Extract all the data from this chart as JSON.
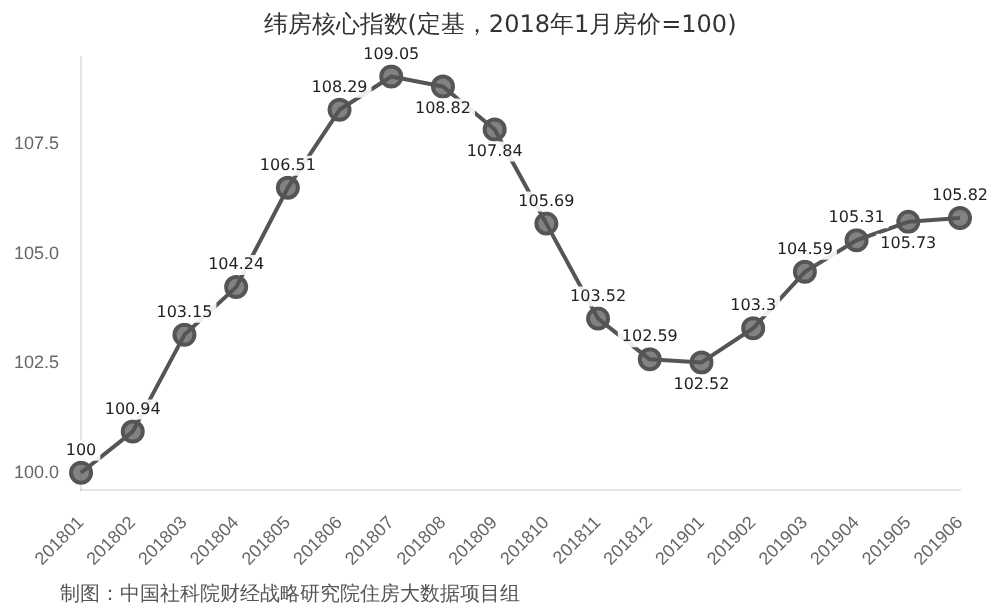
{
  "chart_data": {
    "type": "line",
    "title": "纬房核心指数(定基，2018年1月房价=100)",
    "categories": [
      "201801",
      "201802",
      "201803",
      "201804",
      "201805",
      "201806",
      "201807",
      "201808",
      "201809",
      "201810",
      "201811",
      "201812",
      "201901",
      "201902",
      "201903",
      "201904",
      "201905",
      "201906"
    ],
    "values": [
      100,
      100.94,
      103.15,
      104.24,
      106.51,
      108.29,
      109.05,
      108.82,
      107.84,
      105.69,
      103.52,
      102.59,
      102.52,
      103.3,
      104.59,
      105.31,
      105.73,
      105.82
    ],
    "color": "#555555",
    "marker": "circle",
    "data_labels": true,
    "ylim": [
      99.6,
      109.5
    ],
    "yticks": [
      {
        "value": 100,
        "label": "100.0"
      },
      {
        "value": 102.5,
        "label": "102.5"
      },
      {
        "value": 105,
        "label": "105.0"
      },
      {
        "value": 107.5,
        "label": "107.5"
      }
    ],
    "grid": false,
    "annotations": [
      "制图：中国社科院财经战略研究院住房大数据项目组"
    ]
  }
}
